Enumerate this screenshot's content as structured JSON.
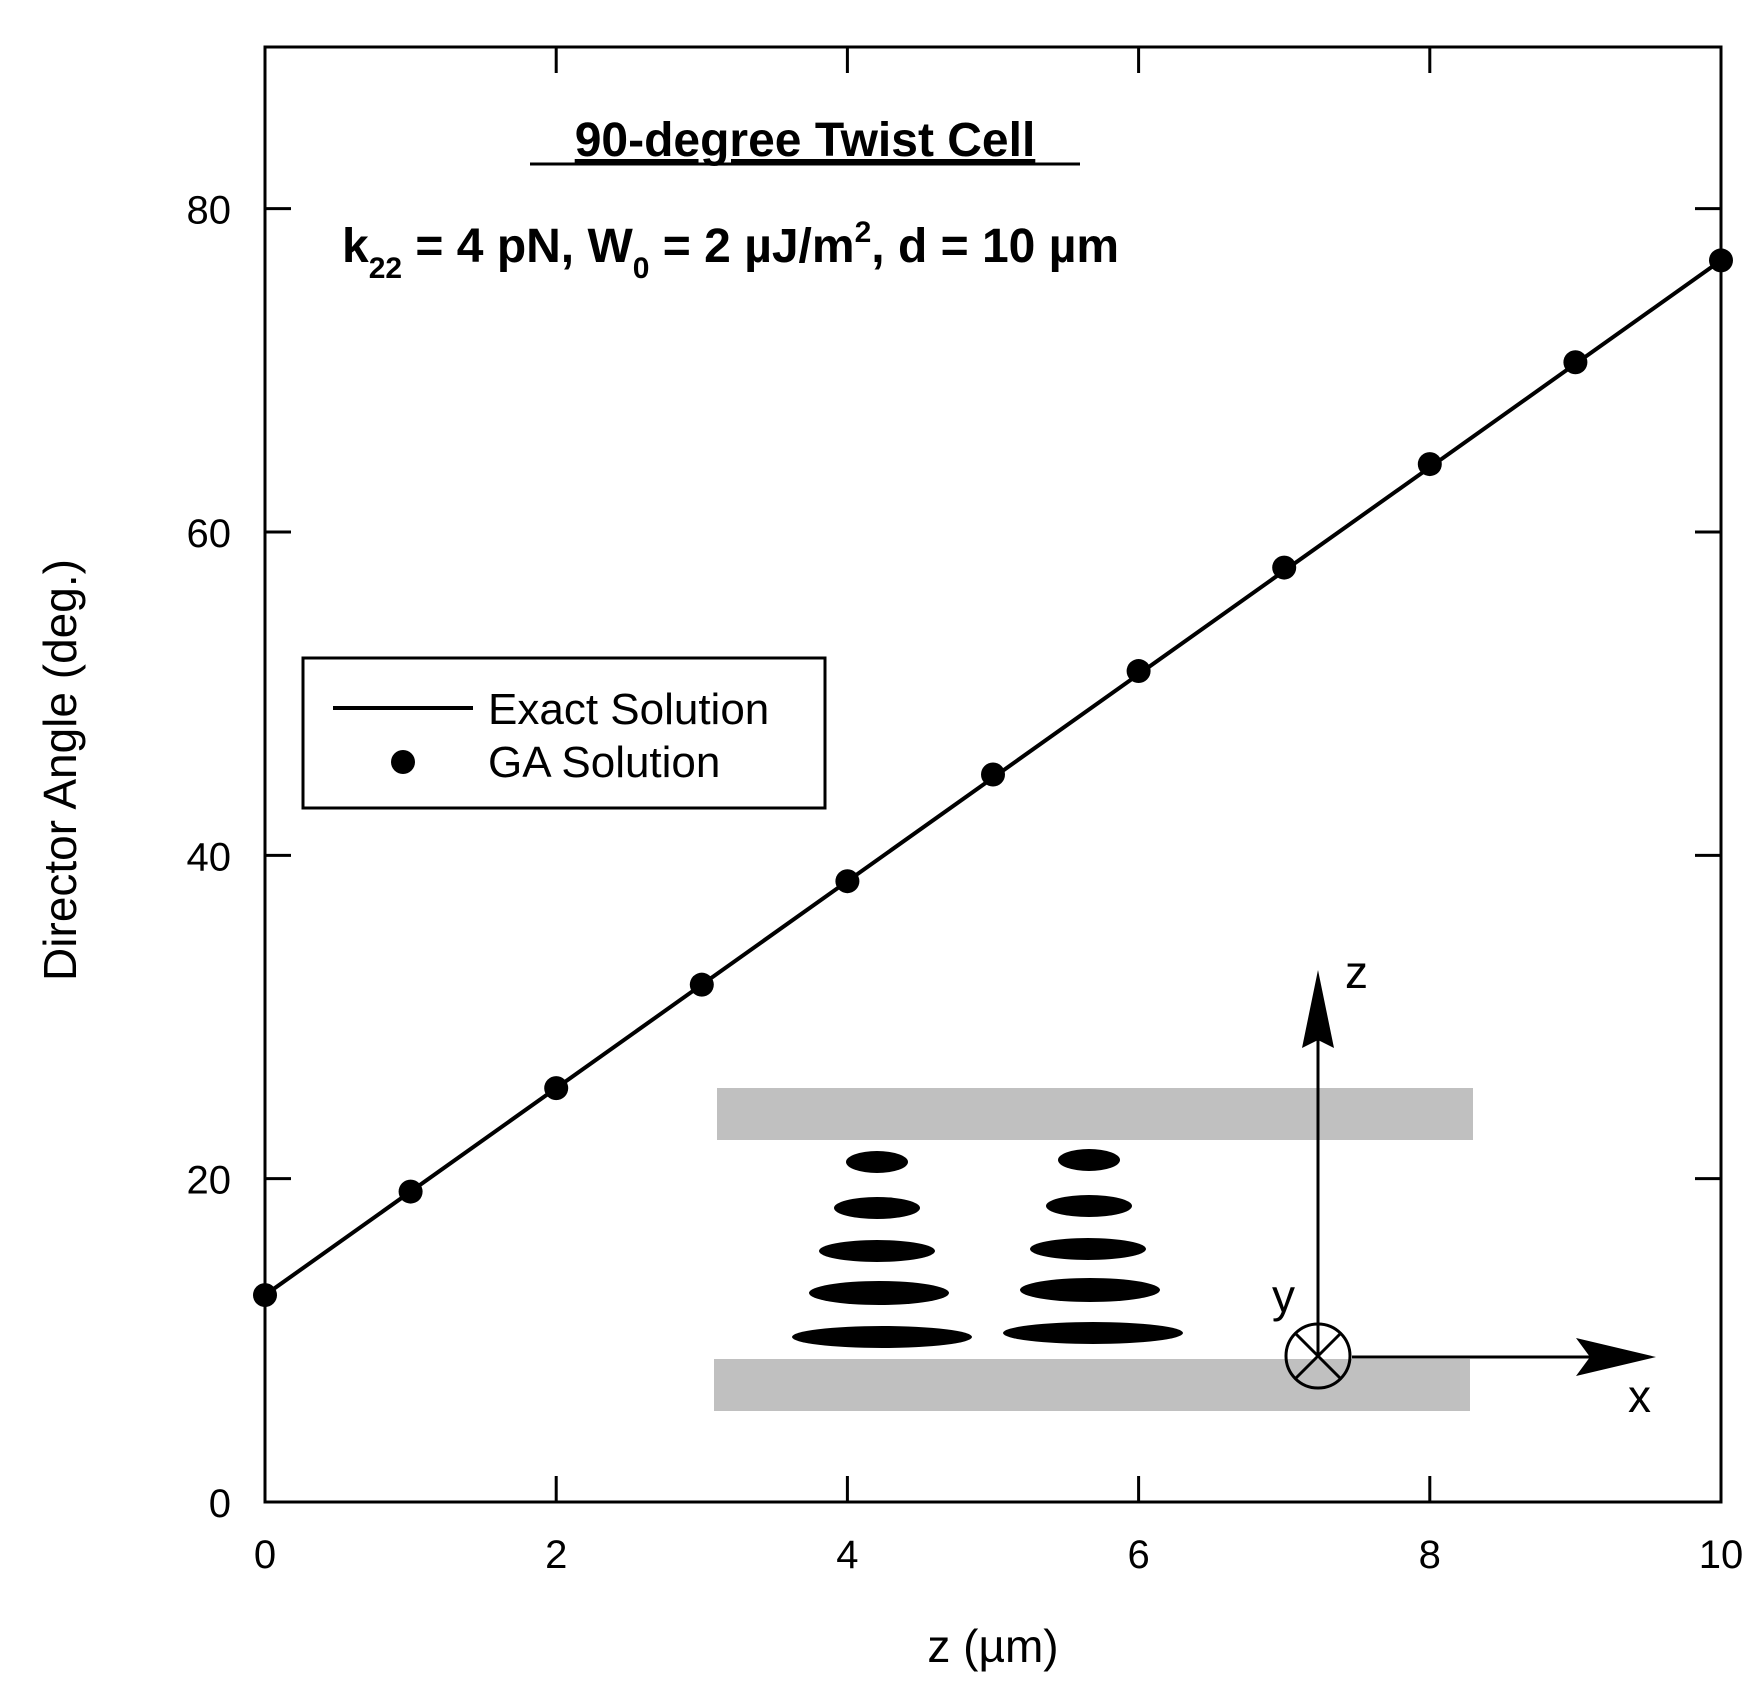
{
  "chart_data": {
    "type": "line",
    "title": "90-degree Twist Cell",
    "parameters": {
      "k_label": "k",
      "k_sub": "22",
      "k_value": " = 4 pN, ",
      "w_label": "W",
      "w_sub": "0",
      "w_value": " = 2 µJ/m",
      "w_sup": "2",
      "d_value": ", d = 10 µm"
    },
    "xlabel": "z  (µm)",
    "ylabel": "Director Angle  (deg.)",
    "xlim": [
      0,
      10
    ],
    "ylim": [
      0,
      90
    ],
    "x_ticks": [
      0,
      2,
      4,
      6,
      8,
      10
    ],
    "y_ticks": [
      0,
      20,
      40,
      60,
      80
    ],
    "grid": false,
    "legend_position": "middle-left",
    "series": [
      {
        "name": "Exact Solution",
        "style": "line",
        "color": "#000000",
        "x": [
          0,
          10
        ],
        "y": [
          12.8,
          76.8
        ]
      },
      {
        "name": "GA Solution",
        "style": "markers",
        "color": "#000000",
        "x": [
          0,
          1,
          2,
          3,
          4,
          5,
          6,
          7,
          8,
          9,
          10
        ],
        "y": [
          12.8,
          19.2,
          25.6,
          32.0,
          38.4,
          45.0,
          51.4,
          57.8,
          64.2,
          70.5,
          76.8
        ]
      }
    ],
    "inset": {
      "axis_labels": {
        "z": "z",
        "y": "y",
        "x": "x"
      },
      "plate_color": "#c0c0c0",
      "molecule_color": "#000000"
    }
  }
}
